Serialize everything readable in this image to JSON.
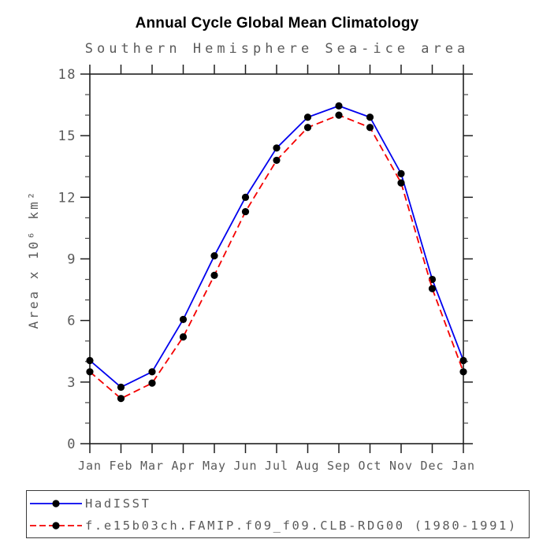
{
  "header": {
    "title": "Annual Cycle Global Mean Climatology",
    "subtitle": "Southern Hemisphere Sea-ice area"
  },
  "chart_data": {
    "type": "line",
    "title": "Annual Cycle Global Mean Climatology",
    "subtitle": "Southern Hemisphere Sea-ice area",
    "categories": [
      "Jan",
      "Feb",
      "Mar",
      "Apr",
      "May",
      "Jun",
      "Jul",
      "Aug",
      "Sep",
      "Oct",
      "Nov",
      "Dec",
      "Jan"
    ],
    "xlabel": "",
    "ylabel": "Area x 10⁶ km²",
    "ylim": [
      0,
      18
    ],
    "ytick_major": [
      0,
      3,
      6,
      9,
      12,
      15,
      18
    ],
    "ytick_minor_step": 1,
    "grid": false,
    "legend_position": "bottom-left-box",
    "series": [
      {
        "name": "HadISST",
        "color": "#0000ee",
        "dash": "solid",
        "marker": "black-dot",
        "values": [
          4.05,
          2.75,
          3.5,
          6.05,
          9.15,
          12.0,
          14.4,
          15.9,
          16.45,
          15.9,
          13.15,
          8.0,
          4.05
        ]
      },
      {
        "name": "f.e15b03ch.FAMIP.f09_f09.CLB-RDG00 (1980-1991)",
        "color": "#f40000",
        "dash": "dashed",
        "marker": "black-dot",
        "values": [
          3.5,
          2.2,
          2.95,
          5.2,
          8.2,
          11.3,
          13.8,
          15.4,
          16.0,
          15.4,
          12.7,
          7.55,
          3.5
        ]
      }
    ],
    "marker_color": "#000000",
    "axis_color": "#1f1f1f",
    "text_color": "#5a5a5a"
  }
}
